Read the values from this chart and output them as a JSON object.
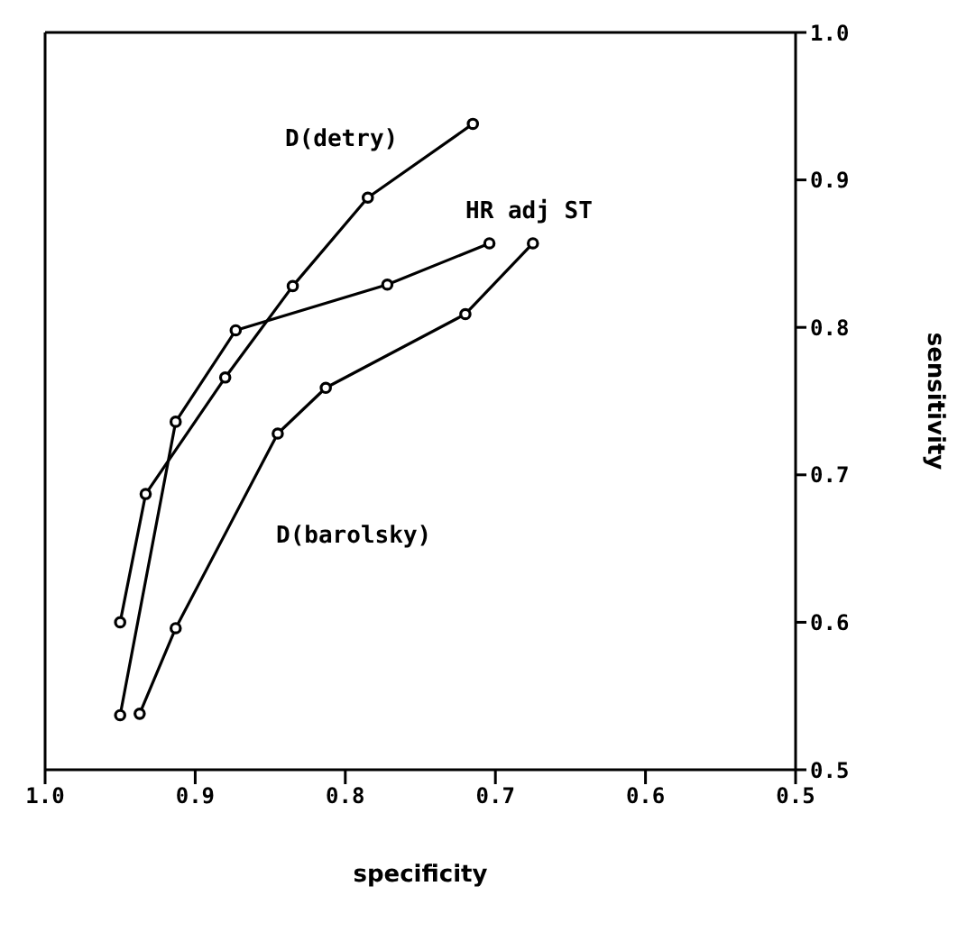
{
  "chart_data": {
    "type": "line",
    "xlabel": "specificity",
    "ylabel": "sensitivity",
    "xlim": [
      1.0,
      0.5
    ],
    "ylim": [
      0.5,
      1.0
    ],
    "xticks": [
      {
        "value": 1.0,
        "label": "1.0"
      },
      0.9,
      0.8,
      0.7,
      0.6,
      0.5
    ],
    "yticks": [
      0.5,
      0.6,
      0.7,
      0.8,
      0.9,
      {
        "value": 1.0,
        "label": "1.0"
      }
    ],
    "marker": "circle",
    "line_style": "solid",
    "legend": false,
    "series": [
      {
        "name": "D(detry)",
        "color": "#000000",
        "x": [
          0.95,
          0.933,
          0.88,
          0.835,
          0.785,
          0.715
        ],
        "values": [
          0.6,
          0.687,
          0.766,
          0.828,
          0.888,
          0.938
        ]
      },
      {
        "name": "HR adj ST",
        "color": "#000000",
        "x": [
          0.95,
          0.913,
          0.873,
          0.772,
          0.704
        ],
        "values": [
          0.537,
          0.736,
          0.798,
          0.829,
          0.857
        ]
      },
      {
        "name": "D(barolsky)",
        "color": "#000000",
        "x": [
          0.937,
          0.913,
          0.845,
          0.813,
          0.72,
          0.675
        ],
        "values": [
          0.538,
          0.596,
          0.728,
          0.759,
          0.809,
          0.857
        ]
      }
    ]
  }
}
